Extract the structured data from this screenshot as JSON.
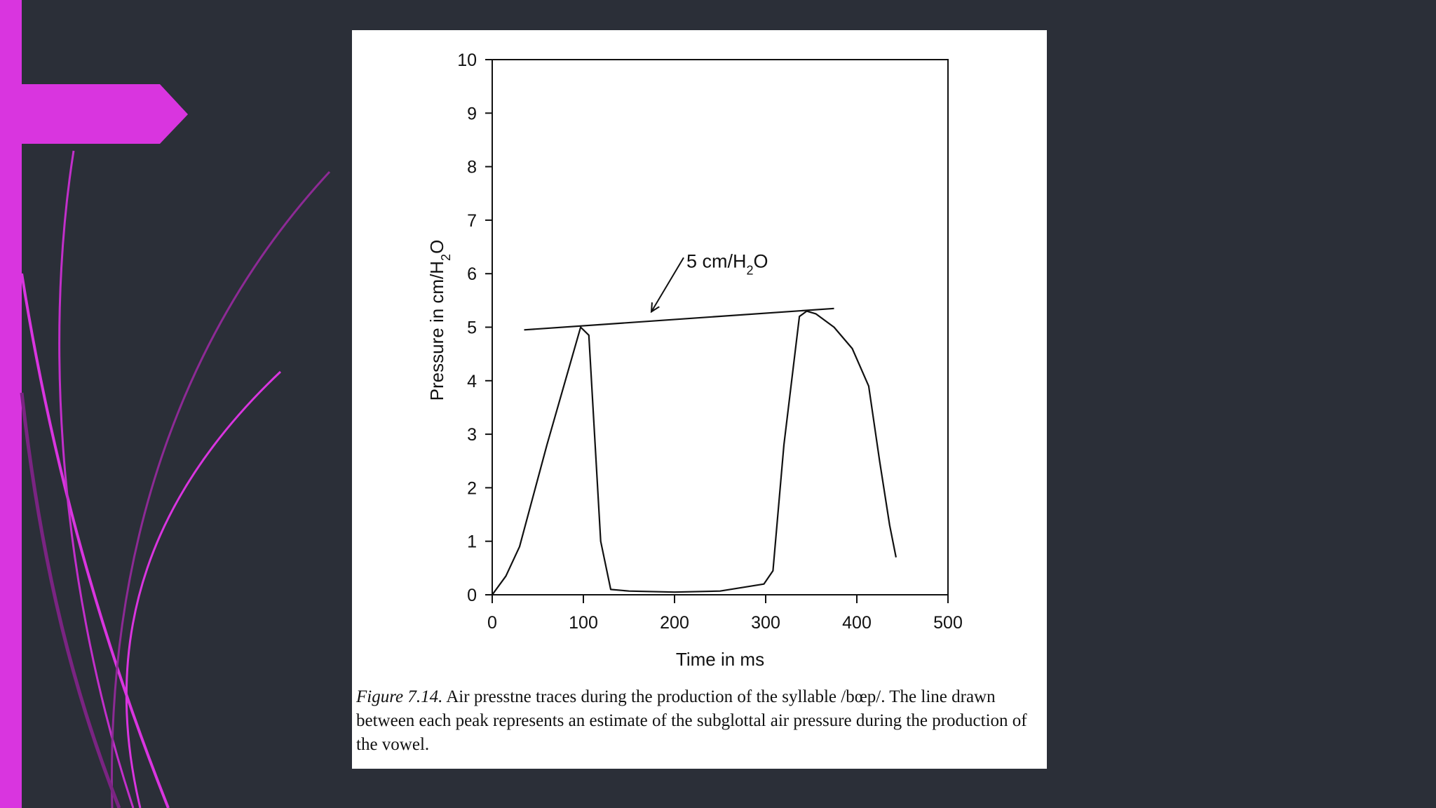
{
  "slide": {
    "background": "#2b2f38",
    "accent": "#d935df"
  },
  "chart_data": {
    "type": "line",
    "xlabel": "Time in ms",
    "ylabel_parts": [
      "Pressure in cm/H",
      "2",
      "O"
    ],
    "xlim": [
      0,
      500
    ],
    "ylim": [
      0,
      10
    ],
    "xticks": [
      0,
      100,
      200,
      300,
      400,
      500
    ],
    "yticks": [
      0,
      1,
      2,
      3,
      4,
      5,
      6,
      7,
      8,
      9,
      10
    ],
    "grid": false,
    "series": [
      {
        "x": [
          0,
          15,
          30,
          60,
          97,
          106,
          119,
          130,
          150,
          200,
          250,
          298,
          308,
          320,
          337,
          345,
          355,
          375,
          395,
          413,
          425,
          436,
          443
        ],
        "y": [
          0,
          0.35,
          0.9,
          2.8,
          5.0,
          4.85,
          1.0,
          0.1,
          0.07,
          0.05,
          0.07,
          0.2,
          0.45,
          2.8,
          5.2,
          5.3,
          5.25,
          5.0,
          4.6,
          3.9,
          2.5,
          1.3,
          0.7
        ]
      }
    ],
    "reference_line": {
      "x": [
        35,
        375
      ],
      "y": [
        4.95,
        5.35
      ]
    },
    "annotation": {
      "parts": [
        "5 cm/H",
        "2",
        "O"
      ],
      "arrow_from": [
        210,
        6.3
      ],
      "arrow_to": [
        175,
        5.3
      ]
    }
  },
  "caption": {
    "label": "Figure 7.14.",
    "text": " Air presstne traces during the production of the syllable /bœp/. The line drawn between each peak represents an estimate of the subglottal air pressure during the production of the vowel."
  }
}
